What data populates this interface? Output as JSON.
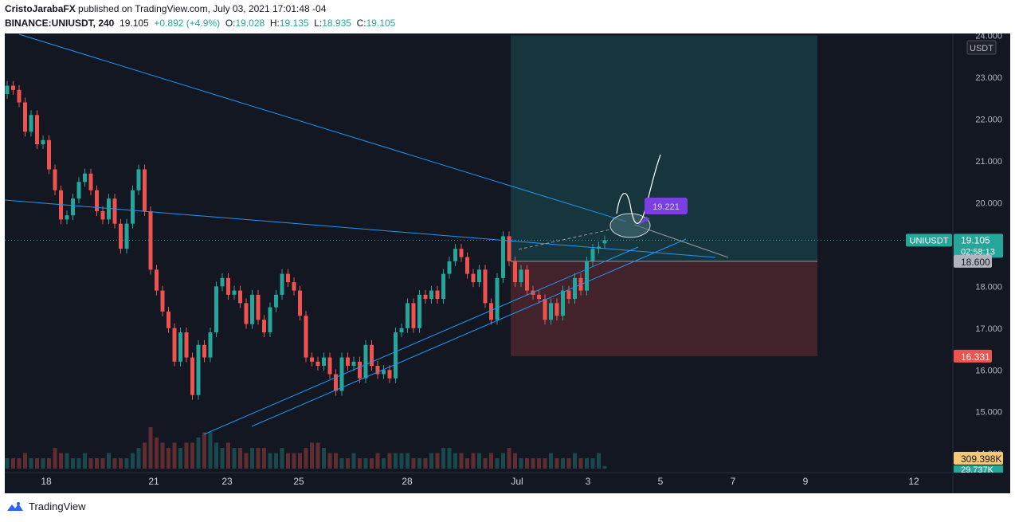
{
  "header": {
    "author": "CristoJarabaFX",
    "published_text": " published on TradingView.com, July 03, 2021 17:01:48 -04",
    "symbol": "BINANCE:UNIUSDT, 240",
    "last": "19.105",
    "change": "+0.892 (+4.9%)",
    "o_label": "O:",
    "o": "19.028",
    "h_label": "H:",
    "h": "19.135",
    "l_label": "L:",
    "l": "18.935",
    "c_label": "C:",
    "c": "19.105"
  },
  "price_axis": {
    "currency": "USDT",
    "ticks": [
      "24.000",
      "23.000",
      "22.000",
      "21.000",
      "20.000",
      "18.000",
      "17.000",
      "16.000",
      "15.000",
      "14.000"
    ],
    "tick_values": [
      24,
      23,
      22,
      21,
      20,
      18,
      17,
      16,
      15,
      14
    ],
    "range": [
      13.05,
      24.05
    ]
  },
  "time_axis": {
    "labels": [
      "18",
      "21",
      "23",
      "25",
      "28",
      "Jul",
      "3",
      "5",
      "7",
      "9",
      "12"
    ]
  },
  "badges": {
    "symbol_label": "UNIUSDT",
    "price": "19.105",
    "countdown": "02:58:13",
    "entry": "18.600",
    "stop": "16.331",
    "volume": "309.398K",
    "volume_partial": "29.737K",
    "callout": "19.221"
  },
  "colors": {
    "background": "#131722",
    "up": "#26a69a",
    "down": "#ef5350",
    "trendline": "#2196f3",
    "target_zone": "#26a69a",
    "stop_zone": "#ef5350",
    "callout": "#7b3fe4"
  },
  "chart_data": {
    "type": "candlestick",
    "symbol": "BINANCE:UNIUSDT",
    "interval": "240",
    "y_unit": "USDT",
    "ylim": [
      13.05,
      24.05
    ],
    "last_price": 19.105,
    "position": {
      "entry": 18.6,
      "target": 24.0,
      "stop": 16.331
    },
    "candles": [
      {
        "o": 22.6,
        "c": 22.8
      },
      {
        "o": 22.8,
        "c": 22.7
      },
      {
        "o": 22.7,
        "c": 22.4
      },
      {
        "o": 22.4,
        "c": 21.7
      },
      {
        "o": 21.7,
        "c": 22.1
      },
      {
        "o": 22.1,
        "c": 21.4
      },
      {
        "o": 21.4,
        "c": 21.5
      },
      {
        "o": 21.5,
        "c": 20.8
      },
      {
        "o": 20.8,
        "c": 20.3
      },
      {
        "o": 20.3,
        "c": 19.6
      },
      {
        "o": 19.6,
        "c": 19.7
      },
      {
        "o": 19.7,
        "c": 20.1
      },
      {
        "o": 20.1,
        "c": 20.5
      },
      {
        "o": 20.5,
        "c": 20.7
      },
      {
        "o": 20.7,
        "c": 20.3
      },
      {
        "o": 20.3,
        "c": 19.8
      },
      {
        "o": 19.8,
        "c": 19.6
      },
      {
        "o": 19.6,
        "c": 20.1
      },
      {
        "o": 20.1,
        "c": 19.5
      },
      {
        "o": 19.5,
        "c": 18.9
      },
      {
        "o": 18.9,
        "c": 19.5
      },
      {
        "o": 19.5,
        "c": 20.3
      },
      {
        "o": 20.3,
        "c": 20.8
      },
      {
        "o": 20.8,
        "c": 19.8
      },
      {
        "o": 19.8,
        "c": 18.4
      },
      {
        "o": 18.4,
        "c": 17.9
      },
      {
        "o": 17.9,
        "c": 17.4
      },
      {
        "o": 17.4,
        "c": 17.0
      },
      {
        "o": 17.0,
        "c": 16.2
      },
      {
        "o": 16.2,
        "c": 16.9
      },
      {
        "o": 16.9,
        "c": 16.3
      },
      {
        "o": 16.3,
        "c": 15.4
      },
      {
        "o": 15.4,
        "c": 16.6
      },
      {
        "o": 16.6,
        "c": 16.3
      },
      {
        "o": 16.3,
        "c": 16.9
      },
      {
        "o": 16.9,
        "c": 18.0
      },
      {
        "o": 18.0,
        "c": 18.2
      },
      {
        "o": 18.2,
        "c": 17.8
      },
      {
        "o": 17.8,
        "c": 17.9
      },
      {
        "o": 17.9,
        "c": 17.6
      },
      {
        "o": 17.6,
        "c": 17.1
      },
      {
        "o": 17.1,
        "c": 17.8
      },
      {
        "o": 17.8,
        "c": 17.2
      },
      {
        "o": 17.2,
        "c": 16.9
      },
      {
        "o": 16.9,
        "c": 17.5
      },
      {
        "o": 17.5,
        "c": 17.8
      },
      {
        "o": 17.8,
        "c": 18.3
      },
      {
        "o": 18.3,
        "c": 18.1
      },
      {
        "o": 18.1,
        "c": 17.9
      },
      {
        "o": 17.9,
        "c": 17.3
      },
      {
        "o": 17.3,
        "c": 16.3
      },
      {
        "o": 16.3,
        "c": 16.2
      },
      {
        "o": 16.2,
        "c": 16.1
      },
      {
        "o": 16.1,
        "c": 16.3
      },
      {
        "o": 16.3,
        "c": 15.9
      },
      {
        "o": 15.9,
        "c": 15.5
      },
      {
        "o": 15.5,
        "c": 16.3
      },
      {
        "o": 16.3,
        "c": 16.1
      },
      {
        "o": 16.1,
        "c": 16.2
      },
      {
        "o": 16.2,
        "c": 15.8
      },
      {
        "o": 15.8,
        "c": 16.6
      },
      {
        "o": 16.6,
        "c": 16.1
      },
      {
        "o": 16.1,
        "c": 15.9
      },
      {
        "o": 15.9,
        "c": 16.0
      },
      {
        "o": 16.0,
        "c": 15.8
      },
      {
        "o": 15.8,
        "c": 16.9
      },
      {
        "o": 16.9,
        "c": 17.0
      },
      {
        "o": 17.0,
        "c": 17.6
      },
      {
        "o": 17.6,
        "c": 17.0
      },
      {
        "o": 17.0,
        "c": 17.8
      },
      {
        "o": 17.8,
        "c": 17.7
      },
      {
        "o": 17.7,
        "c": 17.9
      },
      {
        "o": 17.9,
        "c": 17.7
      },
      {
        "o": 17.7,
        "c": 18.3
      },
      {
        "o": 18.3,
        "c": 18.6
      },
      {
        "o": 18.6,
        "c": 18.9
      },
      {
        "o": 18.9,
        "c": 18.7
      },
      {
        "o": 18.7,
        "c": 18.3
      },
      {
        "o": 18.3,
        "c": 18.1
      },
      {
        "o": 18.1,
        "c": 18.4
      },
      {
        "o": 18.4,
        "c": 17.6
      },
      {
        "o": 17.6,
        "c": 17.2
      },
      {
        "o": 17.2,
        "c": 18.2
      },
      {
        "o": 18.2,
        "c": 19.2
      },
      {
        "o": 19.2,
        "c": 18.6
      },
      {
        "o": 18.6,
        "c": 18.1
      },
      {
        "o": 18.1,
        "c": 18.4
      },
      {
        "o": 18.4,
        "c": 17.9
      },
      {
        "o": 17.9,
        "c": 17.8
      },
      {
        "o": 17.8,
        "c": 17.7
      },
      {
        "o": 17.7,
        "c": 17.2
      },
      {
        "o": 17.2,
        "c": 17.6
      },
      {
        "o": 17.6,
        "c": 17.3
      },
      {
        "o": 17.3,
        "c": 17.9
      },
      {
        "o": 17.9,
        "c": 17.7
      },
      {
        "o": 17.7,
        "c": 18.2
      },
      {
        "o": 18.2,
        "c": 17.9
      },
      {
        "o": 17.9,
        "c": 18.6
      },
      {
        "o": 18.6,
        "c": 18.9
      },
      {
        "o": 18.9,
        "c": 18.95
      },
      {
        "o": 19.03,
        "c": 19.105
      }
    ],
    "volume": [
      2,
      2,
      2,
      3,
      2,
      2,
      2,
      2,
      4,
      3,
      3,
      2,
      2,
      3,
      2,
      2,
      2,
      3,
      2,
      2,
      2,
      3,
      4,
      5,
      8,
      6,
      5,
      4,
      5,
      4,
      5,
      5,
      6,
      7,
      7,
      5,
      4,
      5,
      4,
      4,
      3,
      4,
      4,
      4,
      3,
      3,
      4,
      3,
      3,
      3,
      4,
      5,
      5,
      4,
      3,
      3,
      2,
      2,
      3,
      2,
      2,
      2,
      3,
      2,
      3,
      3,
      3,
      3,
      2,
      2,
      2,
      3,
      3,
      4,
      4,
      3,
      3,
      2,
      3,
      3,
      2,
      3,
      2,
      3,
      4,
      3,
      2,
      2,
      2,
      2,
      2,
      3,
      2,
      2,
      2,
      3,
      2,
      2,
      2,
      3,
      0.5
    ]
  }
}
